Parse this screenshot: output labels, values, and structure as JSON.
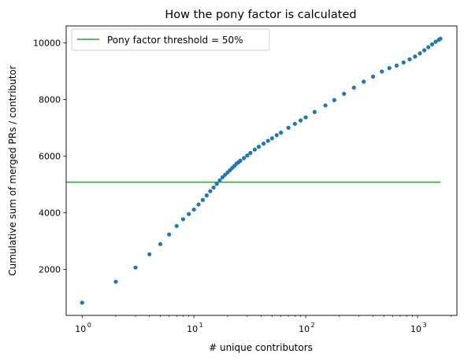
{
  "chart_data": {
    "type": "scatter",
    "title": "How the pony factor is calculated",
    "xlabel": "# unique contributors",
    "ylabel": "Cumulative sum of merged PRs / contributor",
    "x_scale": "log",
    "x_base": "10",
    "xlim": [
      0.72,
      2250
    ],
    "ylim": [
      370,
      10600
    ],
    "x_ticks": [
      {
        "value": 1,
        "exp": "0"
      },
      {
        "value": 10,
        "exp": "1"
      },
      {
        "value": 100,
        "exp": "2"
      },
      {
        "value": 1000,
        "exp": "3"
      }
    ],
    "y_ticks": [
      {
        "value": 2000,
        "label": "2000"
      },
      {
        "value": 4000,
        "label": "4000"
      },
      {
        "value": 6000,
        "label": "6000"
      },
      {
        "value": 8000,
        "label": "8000"
      },
      {
        "value": 10000,
        "label": "10000"
      }
    ],
    "grid": false,
    "legend": {
      "position": "top-left",
      "entries": [
        {
          "label": "Pony factor threshold = 50%",
          "color": "#2ca02c"
        }
      ]
    },
    "series": [
      {
        "color": "#1f77b4",
        "marker": "dot",
        "points": [
          [
            1,
            820
          ],
          [
            2,
            1560
          ],
          [
            3,
            2060
          ],
          [
            4,
            2530
          ],
          [
            5,
            2890
          ],
          [
            6,
            3230
          ],
          [
            7,
            3530
          ],
          [
            8,
            3770
          ],
          [
            9,
            3950
          ],
          [
            10,
            4110
          ],
          [
            11,
            4290
          ],
          [
            12,
            4450
          ],
          [
            13,
            4610
          ],
          [
            14,
            4760
          ],
          [
            15,
            4890
          ],
          [
            16,
            5020
          ],
          [
            17,
            5140
          ],
          [
            18,
            5250
          ],
          [
            19,
            5340
          ],
          [
            20,
            5420
          ],
          [
            21,
            5500
          ],
          [
            22,
            5580
          ],
          [
            23,
            5650
          ],
          [
            24,
            5730
          ],
          [
            25,
            5780
          ],
          [
            26,
            5840
          ],
          [
            28,
            5930
          ],
          [
            30,
            6020
          ],
          [
            32,
            6110
          ],
          [
            35,
            6230
          ],
          [
            38,
            6330
          ],
          [
            42,
            6440
          ],
          [
            46,
            6540
          ],
          [
            50,
            6630
          ],
          [
            55,
            6740
          ],
          [
            60,
            6830
          ],
          [
            70,
            7000
          ],
          [
            80,
            7140
          ],
          [
            90,
            7260
          ],
          [
            100,
            7370
          ],
          [
            120,
            7560
          ],
          [
            150,
            7790
          ],
          [
            180,
            7980
          ],
          [
            220,
            8200
          ],
          [
            270,
            8420
          ],
          [
            330,
            8630
          ],
          [
            400,
            8810
          ],
          [
            480,
            8990
          ],
          [
            560,
            9110
          ],
          [
            650,
            9200
          ],
          [
            750,
            9310
          ],
          [
            850,
            9420
          ],
          [
            950,
            9520
          ],
          [
            1050,
            9630
          ],
          [
            1150,
            9740
          ],
          [
            1250,
            9850
          ],
          [
            1350,
            9950
          ],
          [
            1450,
            10040
          ],
          [
            1550,
            10110
          ],
          [
            1600,
            10150
          ]
        ]
      }
    ],
    "threshold": {
      "y": 5080,
      "x_start": 0.72,
      "x_end": 1600,
      "color": "#2ca02c"
    }
  }
}
